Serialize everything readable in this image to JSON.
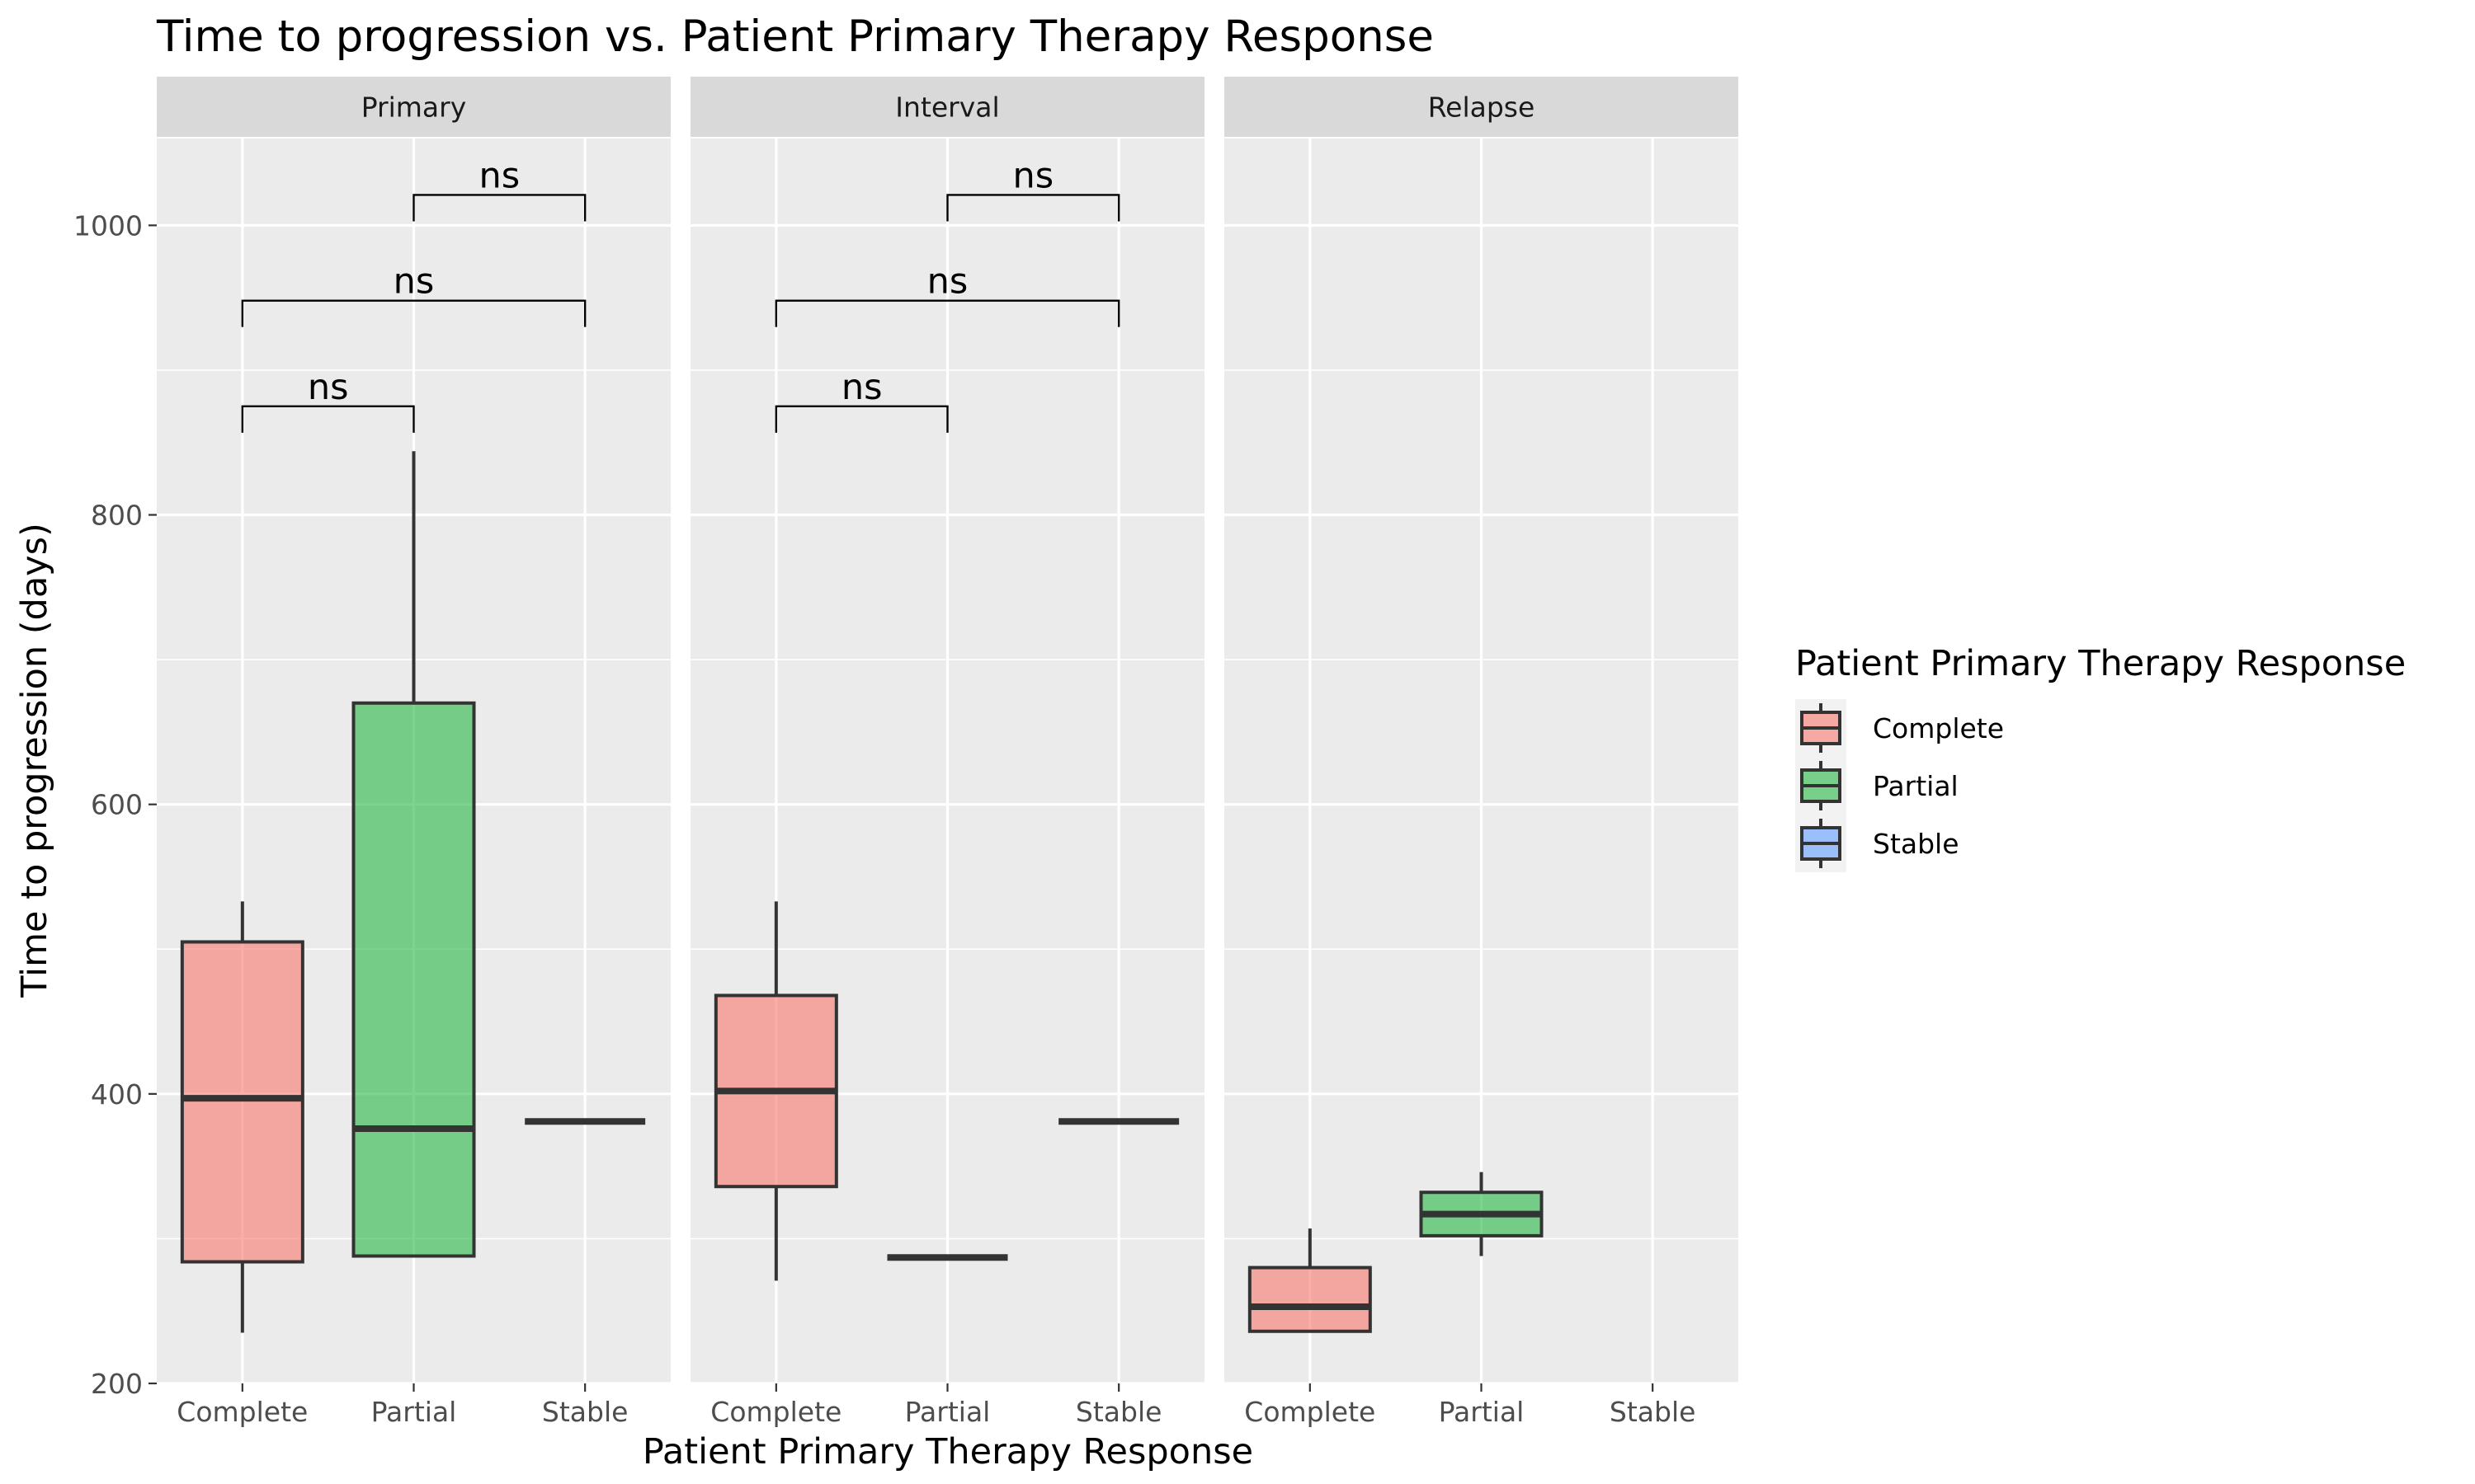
{
  "chart_data": {
    "type": "box",
    "title": "Time to progression vs. Patient Primary Therapy Response",
    "xlabel": "Patient Primary Therapy Response",
    "ylabel": "Time to progression (days)",
    "ylim": [
      200,
      1060
    ],
    "yticks": [
      200,
      400,
      600,
      800,
      1000
    ],
    "categories": [
      "Complete",
      "Partial",
      "Stable"
    ],
    "colors": {
      "Complete": "#f8766d",
      "Partial": "#26b845",
      "Stable": "#619cff"
    },
    "legend": {
      "title": "Patient Primary Therapy Response",
      "position": "right",
      "items": [
        "Complete",
        "Partial",
        "Stable"
      ]
    },
    "grid": true,
    "facets": [
      {
        "label": "Primary",
        "boxes": [
          {
            "category": "Complete",
            "min": 235,
            "q1": 284,
            "median": 397,
            "q3": 505,
            "max": 533
          },
          {
            "category": "Partial",
            "min": 288,
            "q1": 288,
            "median": 376,
            "q3": 670,
            "max": 844
          },
          {
            "category": "Stable",
            "min": 381,
            "q1": 381,
            "median": 381,
            "q3": 381,
            "max": 381
          }
        ],
        "comparisons": [
          {
            "from": "Partial",
            "to": "Stable",
            "y": 1021,
            "label": "ns"
          },
          {
            "from": "Complete",
            "to": "Stable",
            "y": 948,
            "label": "ns"
          },
          {
            "from": "Complete",
            "to": "Partial",
            "y": 875,
            "label": "ns"
          }
        ]
      },
      {
        "label": "Interval",
        "boxes": [
          {
            "category": "Complete",
            "min": 271,
            "q1": 336,
            "median": 402,
            "q3": 468,
            "max": 533
          },
          {
            "category": "Partial",
            "min": 287,
            "q1": 287,
            "median": 287,
            "q3": 287,
            "max": 287
          },
          {
            "category": "Stable",
            "min": 381,
            "q1": 381,
            "median": 381,
            "q3": 381,
            "max": 381
          }
        ],
        "comparisons": [
          {
            "from": "Partial",
            "to": "Stable",
            "y": 1021,
            "label": "ns"
          },
          {
            "from": "Complete",
            "to": "Stable",
            "y": 948,
            "label": "ns"
          },
          {
            "from": "Complete",
            "to": "Partial",
            "y": 875,
            "label": "ns"
          }
        ]
      },
      {
        "label": "Relapse",
        "boxes": [
          {
            "category": "Complete",
            "min": 236,
            "q1": 236,
            "median": 253,
            "q3": 280,
            "max": 307
          },
          {
            "category": "Partial",
            "min": 288,
            "q1": 302,
            "median": 317,
            "q3": 332,
            "max": 346
          }
        ],
        "comparisons": []
      }
    ]
  }
}
